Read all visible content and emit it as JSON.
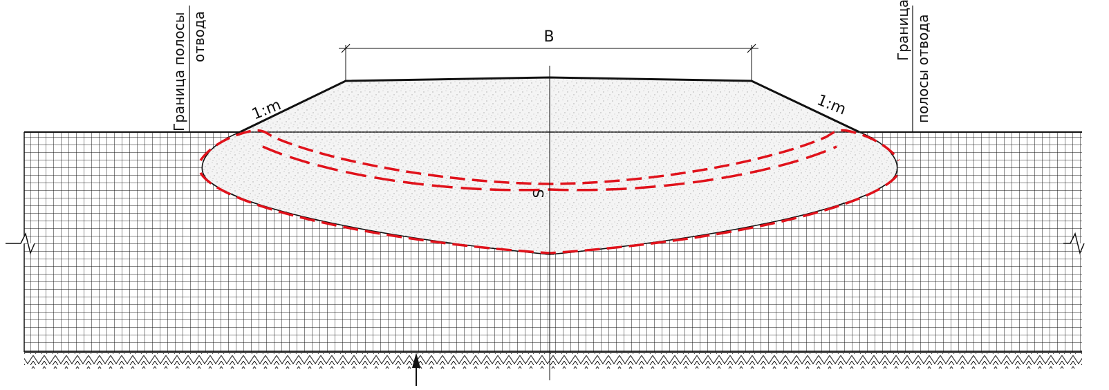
{
  "labels": {
    "width": "B",
    "settlement": "S",
    "slope_left": "1:m",
    "slope_right": "1:m",
    "boundary_left_line1": "Граница полосы",
    "boundary_left_line2": "отвода",
    "boundary_right_line1": "Граница",
    "boundary_right_line2": "полосы отвода"
  },
  "colors": {
    "line": "#111111",
    "settlement_dashes": "#e0121b",
    "embankment_fill": "#f4f4f4",
    "soft_soil_grid": "#111111"
  }
}
